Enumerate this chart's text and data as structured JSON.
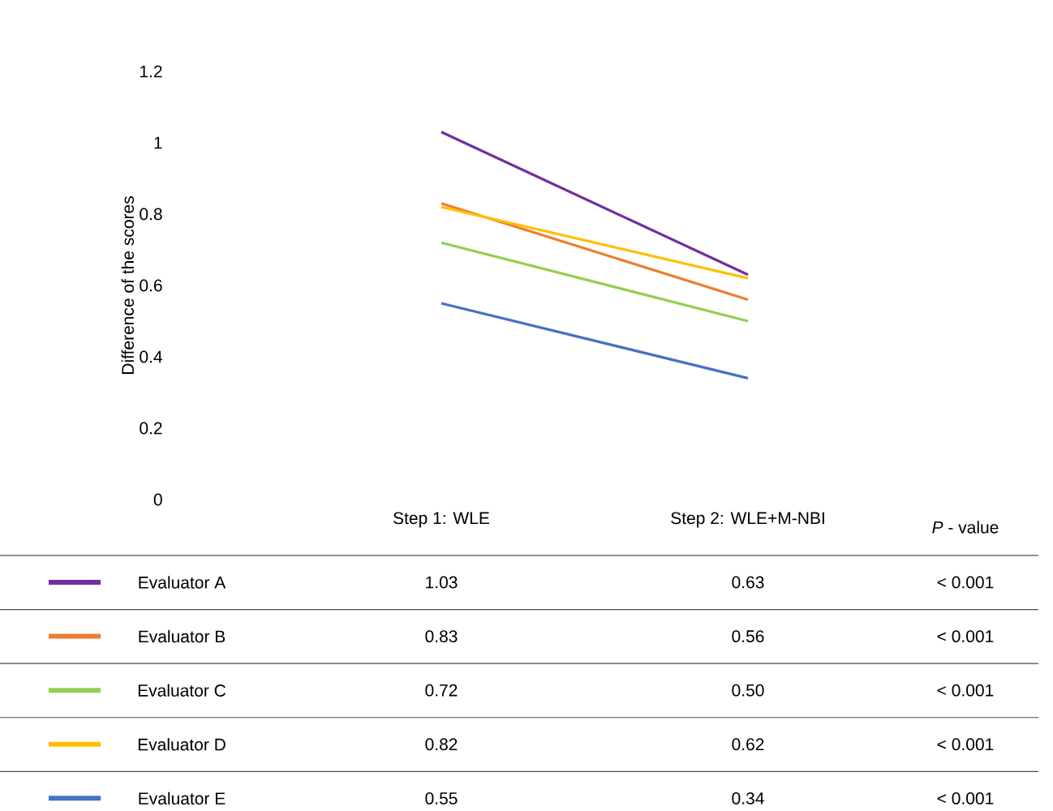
{
  "chart_data": {
    "type": "line",
    "ylabel": "Difference of the scores",
    "categories": [
      "Step 1: WLE",
      "Step 2: WLE+M-NBI"
    ],
    "ylim": [
      0,
      1.2
    ],
    "yticks": [
      0,
      0.2,
      0.4,
      0.6,
      0.8,
      1,
      1.2
    ],
    "grid": false,
    "legend": "bottom left",
    "marker": "none",
    "line_style": "solid",
    "series": [
      {
        "name": "Evaluator A",
        "color": "#7030a0",
        "values": [
          1.03,
          0.63
        ],
        "value_labels": [
          "1.03",
          "0.63"
        ]
      },
      {
        "name": "Evaluator B",
        "color": "#ed7d31",
        "values": [
          0.83,
          0.56
        ],
        "value_labels": [
          "0.83",
          "0.56"
        ]
      },
      {
        "name": "Evaluator C",
        "color": "#92d050",
        "values": [
          0.72,
          0.5
        ],
        "value_labels": [
          "0.72",
          "0.50"
        ]
      },
      {
        "name": "Evaluator D",
        "color": "#ffc000",
        "values": [
          0.82,
          0.62
        ],
        "value_labels": [
          "0.82",
          "0.62"
        ]
      },
      {
        "name": "Evaluator E",
        "color": "#4472c4",
        "values": [
          0.55,
          0.34
        ],
        "value_labels": [
          "0.55",
          "0.34"
        ]
      }
    ],
    "annotations": [
      "*P* - value",
      "< 0.001",
      "< 0.001",
      "< 0.001",
      "< 0.001",
      "< 0.001"
    ]
  }
}
